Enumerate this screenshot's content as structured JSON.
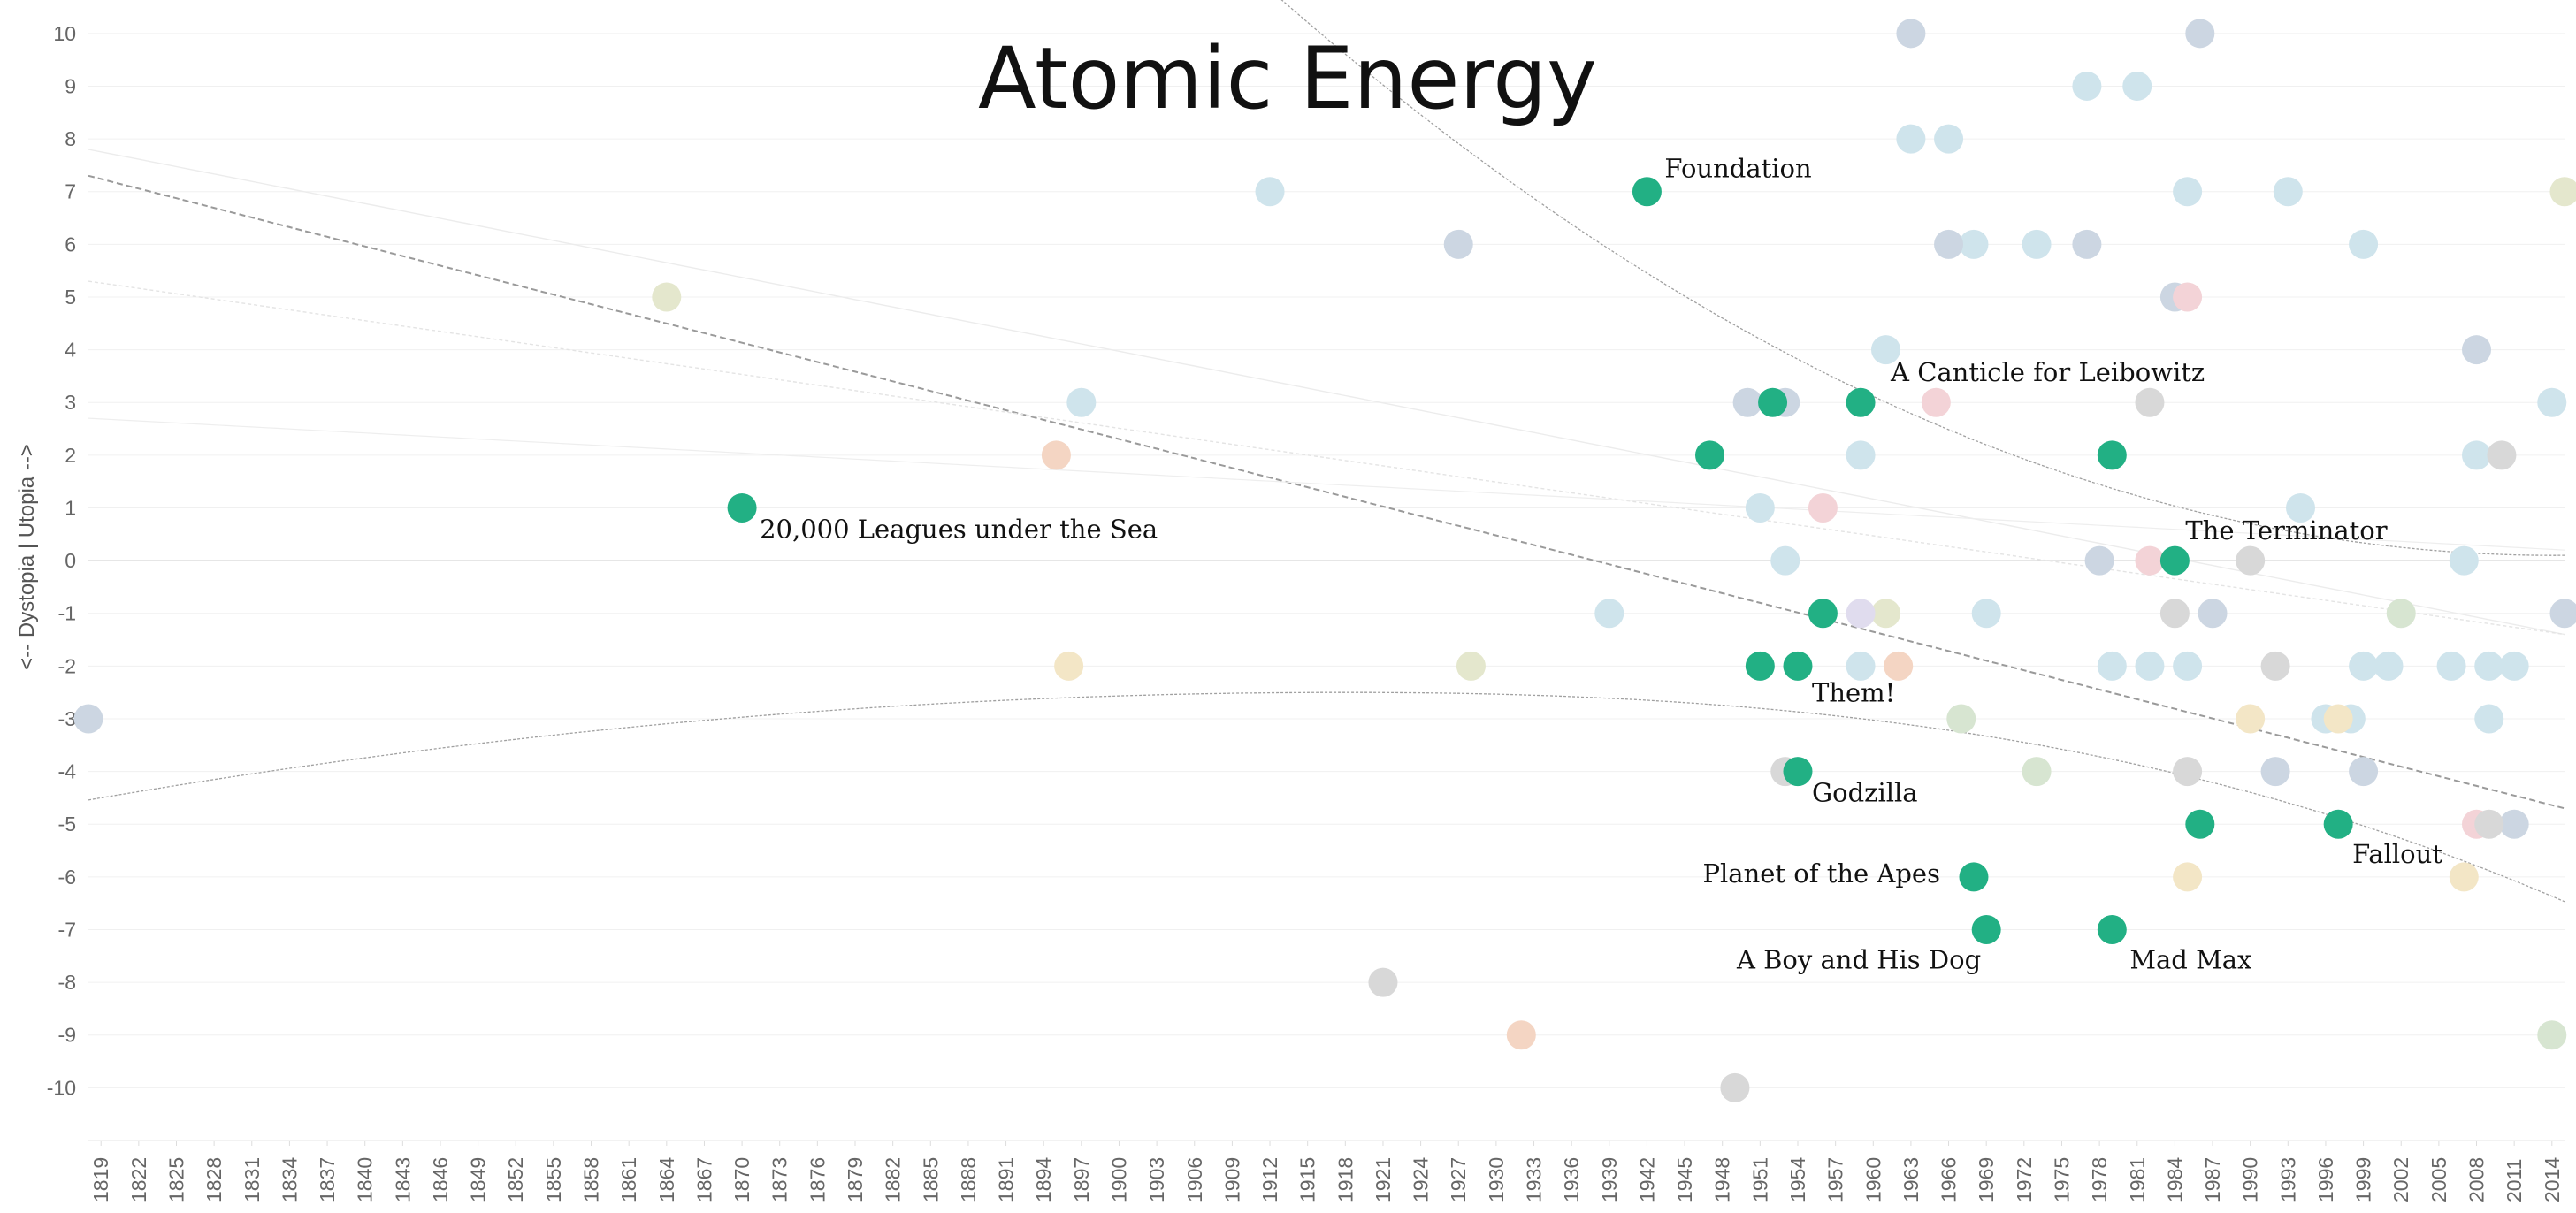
{
  "chart_data": {
    "type": "scatter",
    "title": "Atomic Energy",
    "ylabel": "<-- Dystopia  |  Utopia -->",
    "xlabel": "",
    "xlim": [
      1818,
      2015
    ],
    "ylim": [
      -11,
      10.5
    ],
    "yticks": [
      10,
      9,
      8,
      7,
      6,
      5,
      4,
      3,
      2,
      1,
      0,
      -1,
      -2,
      -3,
      -4,
      -5,
      -6,
      -7,
      -8,
      -9,
      -10
    ],
    "xticks": [
      1819,
      1822,
      1825,
      1828,
      1831,
      1834,
      1837,
      1840,
      1843,
      1846,
      1849,
      1852,
      1855,
      1858,
      1861,
      1864,
      1867,
      1870,
      1873,
      1876,
      1879,
      1882,
      1885,
      1888,
      1891,
      1894,
      1897,
      1900,
      1903,
      1906,
      1909,
      1912,
      1915,
      1918,
      1921,
      1924,
      1927,
      1930,
      1933,
      1936,
      1939,
      1942,
      1945,
      1948,
      1951,
      1954,
      1957,
      1960,
      1963,
      1966,
      1969,
      1972,
      1975,
      1978,
      1981,
      1984,
      1987,
      1990,
      1993,
      1996,
      1999,
      2002,
      2005,
      2008,
      2011,
      2014
    ],
    "colors": {
      "highlight": "#22b084",
      "lightblue": "#cfe4ec",
      "bluegrey": "#ccd6e2",
      "beige": "#e4e7cd",
      "cream": "#f3e6c6",
      "pink": "#f3d3d7",
      "grey": "#d8d8d8",
      "peach": "#f4d5c3",
      "green": "#d7e5d1",
      "lavender": "#e0dcee",
      "mint": "#cfe8e4"
    },
    "series": [
      {
        "color_key": "highlight",
        "points": [
          {
            "x": 1870,
            "y": 1,
            "label": "20,000 Leagues under the Sea"
          },
          {
            "x": 1942,
            "y": 7,
            "label": "Foundation"
          },
          {
            "x": 1947,
            "y": 2,
            "label": ""
          },
          {
            "x": 1952,
            "y": 3,
            "label": ""
          },
          {
            "x": 1959,
            "y": 3,
            "label": "A Canticle for Leibowitz"
          },
          {
            "x": 1951,
            "y": -2,
            "label": ""
          },
          {
            "x": 1954,
            "y": -2,
            "label": "Them!"
          },
          {
            "x": 1956,
            "y": -1,
            "label": ""
          },
          {
            "x": 1954,
            "y": -4,
            "label": "Godzilla"
          },
          {
            "x": 1968,
            "y": -6,
            "label": "Planet of the Apes"
          },
          {
            "x": 1969,
            "y": -7,
            "label": "A Boy and His Dog"
          },
          {
            "x": 1979,
            "y": 2,
            "label": ""
          },
          {
            "x": 1979,
            "y": -7,
            "label": "Mad Max"
          },
          {
            "x": 1984,
            "y": 0,
            "label": "The Terminator"
          },
          {
            "x": 1986,
            "y": -5,
            "label": ""
          },
          {
            "x": 1997,
            "y": -5,
            "label": "Fallout"
          }
        ]
      },
      {
        "color_key": "lightblue",
        "points": [
          {
            "x": 1897,
            "y": 3
          },
          {
            "x": 1912,
            "y": 7
          },
          {
            "x": 1939,
            "y": -1
          },
          {
            "x": 1951,
            "y": 1
          },
          {
            "x": 1953,
            "y": 0
          },
          {
            "x": 1959,
            "y": 2
          },
          {
            "x": 1959,
            "y": -2
          },
          {
            "x": 1961,
            "y": 4
          },
          {
            "x": 1963,
            "y": 8
          },
          {
            "x": 1966,
            "y": 8
          },
          {
            "x": 1968,
            "y": 6
          },
          {
            "x": 1969,
            "y": -1
          },
          {
            "x": 1973,
            "y": 6
          },
          {
            "x": 1977,
            "y": 9
          },
          {
            "x": 1979,
            "y": -2
          },
          {
            "x": 1981,
            "y": 9
          },
          {
            "x": 1982,
            "y": -2
          },
          {
            "x": 1985,
            "y": 7
          },
          {
            "x": 1985,
            "y": -2
          },
          {
            "x": 1993,
            "y": 7
          },
          {
            "x": 1994,
            "y": 1
          },
          {
            "x": 1996,
            "y": -3
          },
          {
            "x": 1998,
            "y": -3
          },
          {
            "x": 1999,
            "y": 6
          },
          {
            "x": 1999,
            "y": -2
          },
          {
            "x": 2001,
            "y": -2
          },
          {
            "x": 2006,
            "y": -2
          },
          {
            "x": 2007,
            "y": 0
          },
          {
            "x": 2008,
            "y": 2
          },
          {
            "x": 2009,
            "y": -2
          },
          {
            "x": 2009,
            "y": -3
          },
          {
            "x": 2011,
            "y": -2
          },
          {
            "x": 2014,
            "y": 3
          }
        ]
      },
      {
        "color_key": "bluegrey",
        "points": [
          {
            "x": 1818,
            "y": -3
          },
          {
            "x": 1927,
            "y": 6
          },
          {
            "x": 1950,
            "y": 3
          },
          {
            "x": 1953,
            "y": 3
          },
          {
            "x": 1963,
            "y": 10
          },
          {
            "x": 1966,
            "y": 6
          },
          {
            "x": 1977,
            "y": 6
          },
          {
            "x": 1978,
            "y": 0
          },
          {
            "x": 1984,
            "y": 5
          },
          {
            "x": 1986,
            "y": 10
          },
          {
            "x": 1987,
            "y": -1
          },
          {
            "x": 1992,
            "y": -4
          },
          {
            "x": 1999,
            "y": -4
          },
          {
            "x": 2008,
            "y": 4
          },
          {
            "x": 2011,
            "y": -5
          },
          {
            "x": 2015,
            "y": -1
          }
        ]
      },
      {
        "color_key": "beige",
        "points": [
          {
            "x": 1864,
            "y": 5
          },
          {
            "x": 1928,
            "y": -2
          },
          {
            "x": 1961,
            "y": -1
          },
          {
            "x": 2015,
            "y": 7
          }
        ]
      },
      {
        "color_key": "cream",
        "points": [
          {
            "x": 1896,
            "y": -2
          },
          {
            "x": 1985,
            "y": -6
          },
          {
            "x": 1990,
            "y": -3
          },
          {
            "x": 1997,
            "y": -3
          },
          {
            "x": 2007,
            "y": -6
          }
        ]
      },
      {
        "color_key": "peach",
        "points": [
          {
            "x": 1895,
            "y": 2
          },
          {
            "x": 1932,
            "y": -9
          },
          {
            "x": 1962,
            "y": -2
          }
        ]
      },
      {
        "color_key": "pink",
        "points": [
          {
            "x": 1956,
            "y": 1
          },
          {
            "x": 1965,
            "y": 3
          },
          {
            "x": 1985,
            "y": 5
          },
          {
            "x": 1982,
            "y": 0
          },
          {
            "x": 2008,
            "y": -5
          }
        ]
      },
      {
        "color_key": "grey",
        "points": [
          {
            "x": 1921,
            "y": -8
          },
          {
            "x": 1949,
            "y": -10
          },
          {
            "x": 1953,
            "y": -4
          },
          {
            "x": 1982,
            "y": 3
          },
          {
            "x": 1984,
            "y": -1
          },
          {
            "x": 1985,
            "y": -4
          },
          {
            "x": 1990,
            "y": 0
          },
          {
            "x": 1992,
            "y": -2
          },
          {
            "x": 2009,
            "y": -5
          },
          {
            "x": 2010,
            "y": 2
          }
        ]
      },
      {
        "color_key": "green",
        "points": [
          {
            "x": 1967,
            "y": -3
          },
          {
            "x": 1973,
            "y": -4
          },
          {
            "x": 2002,
            "y": -1
          },
          {
            "x": 2014,
            "y": -9
          }
        ]
      },
      {
        "color_key": "lavender",
        "points": [
          {
            "x": 1959,
            "y": -1
          }
        ]
      }
    ]
  }
}
